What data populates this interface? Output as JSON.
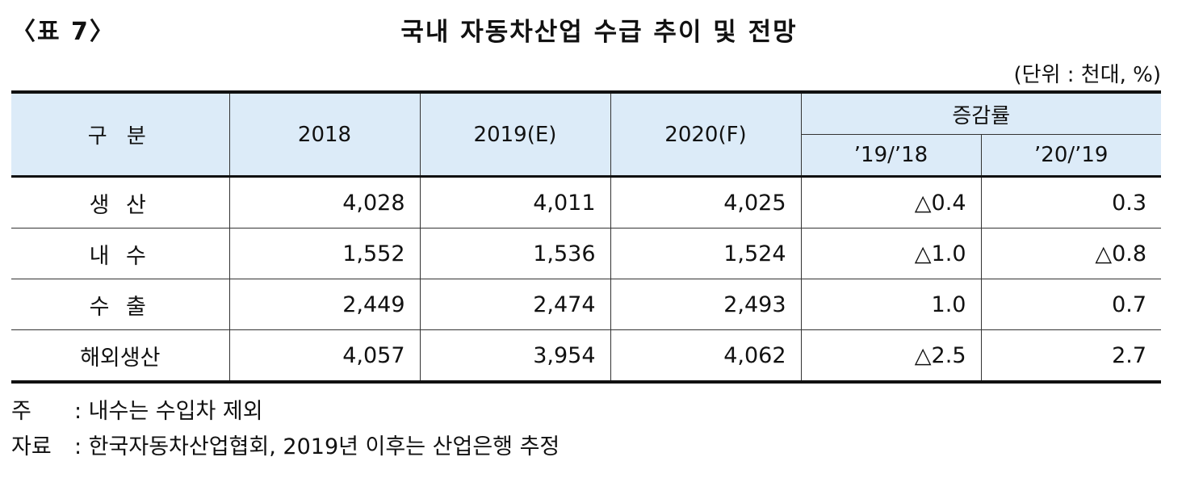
{
  "caption": "〈표 7〉",
  "title": "국내 자동차산업 수급 추이 및 전망",
  "unit": "(단위 : 천대, %)",
  "header": {
    "category": "구 분",
    "y2018": "2018",
    "y2019": "2019(E)",
    "y2020": "2020(F)",
    "growth": "증감률",
    "g1": "’19/’18",
    "g2": "’20/’19"
  },
  "rows": [
    {
      "label": "생 산",
      "v2018": "4,028",
      "v2019": "4,011",
      "v2020": "4,025",
      "g1": "△0.4",
      "g2": "0.3"
    },
    {
      "label": "내 수",
      "v2018": "1,552",
      "v2019": "1,536",
      "v2020": "1,524",
      "g1": "△1.0",
      "g2": "△0.8"
    },
    {
      "label": "수 출",
      "v2018": "2,449",
      "v2019": "2,474",
      "v2020": "2,493",
      "g1": "1.0",
      "g2": "0.7"
    },
    {
      "label": "해외생산",
      "v2018": "4,057",
      "v2019": "3,954",
      "v2020": "4,062",
      "g1": "△2.5",
      "g2": "2.7"
    }
  ],
  "notes": {
    "note_label": "주",
    "note_text": ": 내수는 수입차 제외",
    "source_label": "자료",
    "source_text": ": 한국자동차산업협회, 2019년 이후는 산업은행 추정"
  },
  "colors": {
    "header_bg": "#dcebf8"
  }
}
